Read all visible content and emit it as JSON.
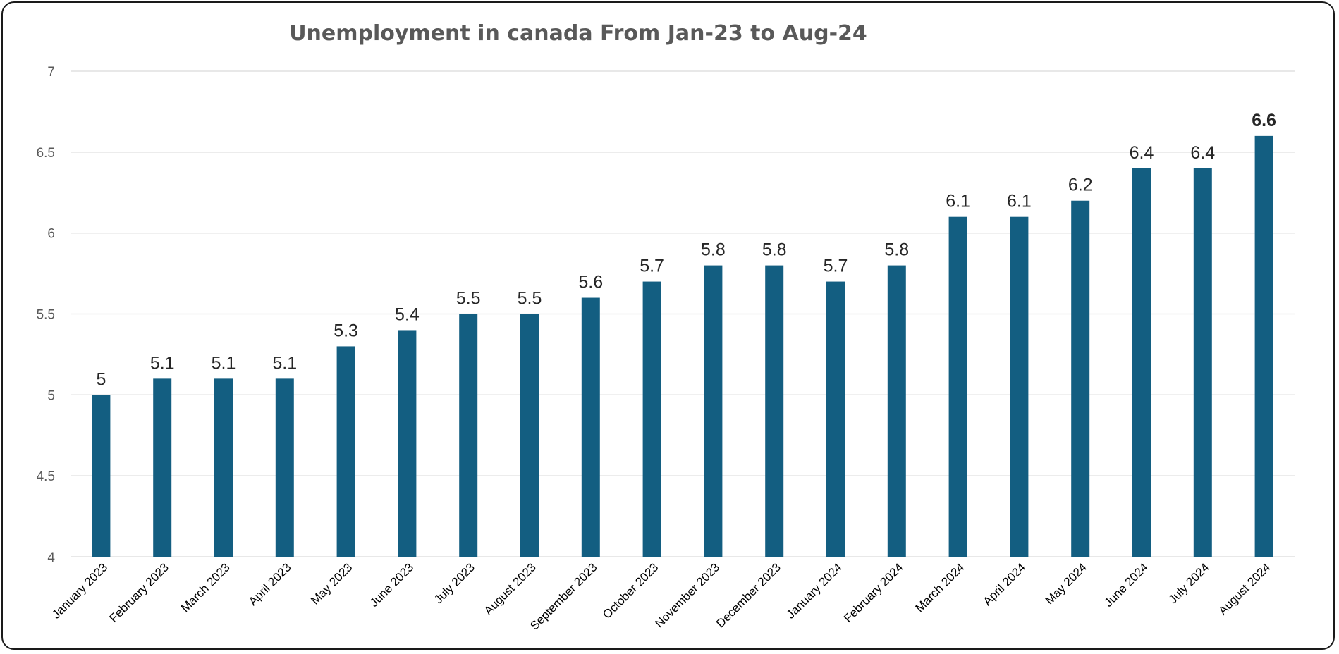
{
  "chart_data": {
    "type": "bar",
    "title": "Unemployment in canada From Jan-23 to Aug-24",
    "xlabel": "",
    "ylabel": "",
    "ylim": [
      4,
      7
    ],
    "yticks": [
      "4",
      "4.5",
      "5",
      "5.5",
      "6",
      "6.5",
      "7"
    ],
    "grid": true,
    "legend": "none",
    "categories": [
      "January 2023",
      "February 2023",
      "March 2023",
      "April 2023",
      "May 2023",
      "June 2023",
      "July 2023",
      "August 2023",
      "September 2023",
      "October 2023",
      "November 2023",
      "December 2023",
      "January 2024",
      "February 2024",
      "March 2024",
      "April 2024",
      "May 2024",
      "June 2024",
      "July 2024",
      "August 2024"
    ],
    "values": [
      5,
      5.1,
      5.1,
      5.1,
      5.3,
      5.4,
      5.5,
      5.5,
      5.6,
      5.7,
      5.8,
      5.8,
      5.7,
      5.8,
      6.1,
      6.1,
      6.2,
      6.4,
      6.4,
      6.6
    ],
    "data_labels": [
      "5",
      "5.1",
      "5.1",
      "5.1",
      "5.3",
      "5.4",
      "5.5",
      "5.5",
      "5.6",
      "5.7",
      "5.8",
      "5.8",
      "5.7",
      "5.8",
      "6.1",
      "6.1",
      "6.2",
      "6.4",
      "6.4",
      "6.6"
    ],
    "highlight_index": 19,
    "colors": {
      "bar": "#135E81",
      "grid": "#D9D9D9",
      "label": "#262626",
      "highlight_label": "#E00000",
      "title": "#595959"
    }
  }
}
